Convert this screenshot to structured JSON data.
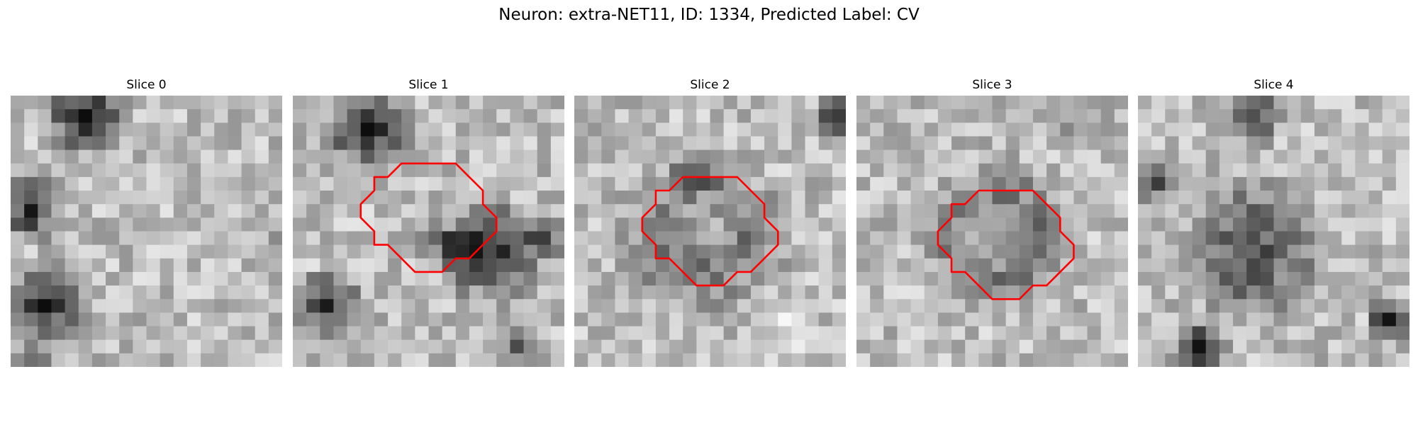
{
  "title": "Neuron: extra-NET11, ID: 1334, Predicted Label: CV",
  "colors": {
    "contour": "#ff0000",
    "background": "#ffffff"
  },
  "panels": [
    {
      "label": "Slice 0",
      "has_contour": false,
      "dark_blobs": [
        {
          "cx": 5,
          "cy": 1,
          "r": 3.5,
          "s": 0.55
        },
        {
          "cx": 1,
          "cy": 8,
          "r": 3,
          "s": 0.45
        },
        {
          "cx": 2,
          "cy": 15,
          "r": 4,
          "s": 0.5
        },
        {
          "cx": 1,
          "cy": 20,
          "r": 2.5,
          "s": 0.55
        },
        {
          "cx": 21,
          "cy": 10,
          "r": 3,
          "s": 0.2
        }
      ],
      "pixel_seed": 11
    },
    {
      "label": "Slice 1",
      "has_contour": true,
      "dark_blobs": [
        {
          "cx": 5,
          "cy": 2,
          "r": 3.5,
          "s": 0.6
        },
        {
          "cx": 14,
          "cy": 11,
          "r": 4.5,
          "s": 0.5
        },
        {
          "cx": 11,
          "cy": 10,
          "r": 2.5,
          "s": 0.35
        },
        {
          "cx": 2,
          "cy": 15,
          "r": 3,
          "s": 0.5
        },
        {
          "cx": 16,
          "cy": 18,
          "r": 1.5,
          "s": 0.45
        },
        {
          "cx": 18,
          "cy": 10,
          "r": 2,
          "s": 0.3
        }
      ],
      "light_blobs": [
        {
          "cx": 11,
          "cy": 9,
          "r": 1.8,
          "s": 0.25
        }
      ],
      "pixel_seed": 23
    },
    {
      "label": "Slice 2",
      "has_contour": true,
      "dark_blobs": [
        {
          "cx": 9,
          "cy": 10,
          "r": 7,
          "s": 0.35
        },
        {
          "cx": 19,
          "cy": 1,
          "r": 2.2,
          "s": 0.55
        },
        {
          "cx": 9,
          "cy": 5,
          "r": 3,
          "s": 0.2
        }
      ],
      "light_blobs": [
        {
          "cx": 9,
          "cy": 9,
          "r": 3.2,
          "s": 0.35
        },
        {
          "cx": 15,
          "cy": 16,
          "r": 3,
          "s": 0.15
        }
      ],
      "pixel_seed": 37
    },
    {
      "label": "Slice 3",
      "has_contour": true,
      "dark_blobs": [
        {
          "cx": 10,
          "cy": 10,
          "r": 6.5,
          "s": 0.4
        },
        {
          "cx": 15,
          "cy": 2,
          "r": 2,
          "s": 0.25
        }
      ],
      "light_blobs": [
        {
          "cx": 9.5,
          "cy": 10,
          "r": 3.2,
          "s": 0.35
        }
      ],
      "pixel_seed": 49
    },
    {
      "label": "Slice 4",
      "has_contour": false,
      "dark_blobs": [
        {
          "cx": 8,
          "cy": 1,
          "r": 2.5,
          "s": 0.45
        },
        {
          "cx": 8,
          "cy": 11,
          "r": 6.5,
          "s": 0.4
        },
        {
          "cx": 1,
          "cy": 6,
          "r": 2,
          "s": 0.4
        },
        {
          "cx": 18,
          "cy": 16,
          "r": 2,
          "s": 0.6
        },
        {
          "cx": 4,
          "cy": 18,
          "r": 2.5,
          "s": 0.5
        }
      ],
      "pixel_seed": 61
    }
  ],
  "contour_points": [
    [
      7,
      7
    ],
    [
      8,
      7
    ],
    [
      9,
      7
    ],
    [
      10,
      7
    ],
    [
      11,
      7
    ],
    [
      12,
      8
    ],
    [
      13,
      9
    ],
    [
      13,
      10
    ],
    [
      14,
      11
    ],
    [
      14,
      12
    ],
    [
      13,
      13
    ],
    [
      12,
      14
    ],
    [
      11,
      14
    ],
    [
      10,
      15
    ],
    [
      9,
      15
    ],
    [
      8,
      15
    ],
    [
      7,
      14
    ],
    [
      6,
      13
    ],
    [
      5,
      13
    ],
    [
      5,
      12
    ],
    [
      4,
      11
    ],
    [
      4,
      10
    ],
    [
      5,
      9
    ],
    [
      5,
      8
    ],
    [
      6,
      8
    ]
  ],
  "contour_origin": [
    [
      5,
      7
    ],
    [
      5,
      5
    ],
    [
      5,
      6
    ],
    [
      6,
      7
    ],
    [
      6,
      7
    ]
  ]
}
